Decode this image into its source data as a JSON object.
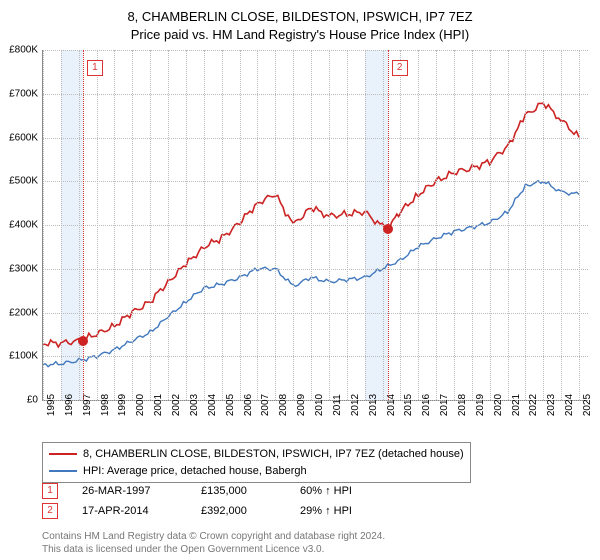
{
  "title_line1": "8, CHAMBERLIN CLOSE, BILDESTON, IPSWICH, IP7 7EZ",
  "title_line2": "Price paid vs. HM Land Registry's House Price Index (HPI)",
  "chart": {
    "type": "line",
    "ylim": [
      0,
      800000
    ],
    "ytick_step": 100000,
    "yticks": [
      "£0",
      "£100K",
      "£200K",
      "£300K",
      "£400K",
      "£500K",
      "£600K",
      "£700K",
      "£800K"
    ],
    "xrange": [
      1995,
      2025.5
    ],
    "xticks": [
      1995,
      1996,
      1997,
      1998,
      1999,
      2000,
      2001,
      2002,
      2003,
      2004,
      2005,
      2006,
      2007,
      2008,
      2009,
      2010,
      2011,
      2012,
      2013,
      2014,
      2015,
      2016,
      2017,
      2018,
      2019,
      2020,
      2021,
      2022,
      2023,
      2024,
      2025
    ],
    "background_color": "#ffffff",
    "grid_color": "#bbbbbb",
    "shade_color": "#e9f2fb",
    "series": [
      {
        "name": "property",
        "color": "#cc2222",
        "width": 1.6,
        "points": [
          [
            1995,
            130000
          ],
          [
            1996,
            130000
          ],
          [
            1997,
            135000
          ],
          [
            1998,
            150000
          ],
          [
            1999,
            170000
          ],
          [
            2000,
            200000
          ],
          [
            2001,
            225000
          ],
          [
            2002,
            270000
          ],
          [
            2003,
            310000
          ],
          [
            2004,
            350000
          ],
          [
            2005,
            370000
          ],
          [
            2006,
            405000
          ],
          [
            2007,
            450000
          ],
          [
            2008,
            470000
          ],
          [
            2009,
            400000
          ],
          [
            2010,
            440000
          ],
          [
            2011,
            420000
          ],
          [
            2012,
            425000
          ],
          [
            2013,
            430000
          ],
          [
            2014,
            395000
          ],
          [
            2014.3,
            392000
          ],
          [
            2015,
            430000
          ],
          [
            2016,
            470000
          ],
          [
            2017,
            500000
          ],
          [
            2018,
            520000
          ],
          [
            2019,
            530000
          ],
          [
            2020,
            545000
          ],
          [
            2021,
            580000
          ],
          [
            2022,
            650000
          ],
          [
            2023,
            680000
          ],
          [
            2024,
            640000
          ],
          [
            2025,
            600000
          ]
        ]
      },
      {
        "name": "hpi",
        "color": "#4178be",
        "width": 1.4,
        "points": [
          [
            1995,
            80000
          ],
          [
            1996,
            83000
          ],
          [
            1997,
            90000
          ],
          [
            1998,
            100000
          ],
          [
            1999,
            115000
          ],
          [
            2000,
            135000
          ],
          [
            2001,
            155000
          ],
          [
            2002,
            190000
          ],
          [
            2003,
            225000
          ],
          [
            2004,
            255000
          ],
          [
            2005,
            265000
          ],
          [
            2006,
            280000
          ],
          [
            2007,
            300000
          ],
          [
            2008,
            300000
          ],
          [
            2009,
            260000
          ],
          [
            2010,
            280000
          ],
          [
            2011,
            270000
          ],
          [
            2012,
            275000
          ],
          [
            2013,
            280000
          ],
          [
            2014,
            300000
          ],
          [
            2015,
            320000
          ],
          [
            2016,
            350000
          ],
          [
            2017,
            370000
          ],
          [
            2018,
            385000
          ],
          [
            2019,
            395000
          ],
          [
            2020,
            405000
          ],
          [
            2021,
            430000
          ],
          [
            2022,
            490000
          ],
          [
            2023,
            500000
          ],
          [
            2024,
            475000
          ],
          [
            2025,
            470000
          ]
        ]
      }
    ],
    "shade_ranges": [
      {
        "start": 1996.0,
        "end": 1997.23
      },
      {
        "start": 2013.0,
        "end": 2014.29
      }
    ],
    "markers": [
      {
        "n": "1",
        "year": 1997.23,
        "value": 135000,
        "color": "#cc2222"
      },
      {
        "n": "2",
        "year": 2014.29,
        "value": 392000,
        "color": "#cc2222"
      }
    ]
  },
  "legend": {
    "items": [
      {
        "color": "#cc2222",
        "label": "8, CHAMBERLIN CLOSE, BILDESTON, IPSWICH, IP7 7EZ (detached house)"
      },
      {
        "color": "#4178be",
        "label": "HPI: Average price, detached house, Babergh"
      }
    ]
  },
  "transactions": [
    {
      "n": "1",
      "date": "26-MAR-1997",
      "price": "£135,000",
      "pct": "60% ↑ HPI"
    },
    {
      "n": "2",
      "date": "17-APR-2014",
      "price": "£392,000",
      "pct": "29% ↑ HPI"
    }
  ],
  "footer_line1": "Contains HM Land Registry data © Crown copyright and database right 2024.",
  "footer_line2": "This data is licensed under the Open Government Licence v3.0."
}
